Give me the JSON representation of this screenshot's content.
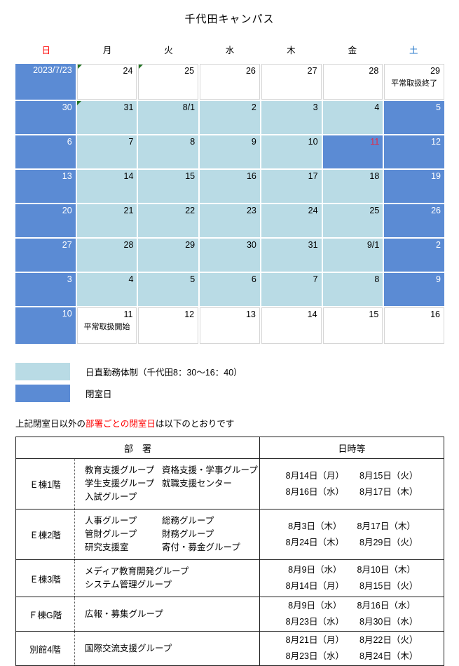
{
  "title": "千代田キャンパス",
  "weekdays": [
    {
      "label": "日",
      "color": "#ff0000"
    },
    {
      "label": "月",
      "color": "#000000"
    },
    {
      "label": "火",
      "color": "#000000"
    },
    {
      "label": "水",
      "color": "#000000"
    },
    {
      "label": "木",
      "color": "#000000"
    },
    {
      "label": "金",
      "color": "#000000"
    },
    {
      "label": "土",
      "color": "#1e73c8"
    }
  ],
  "calendar": {
    "rows": [
      [
        {
          "label": "2023/7/23",
          "type": "closed"
        },
        {
          "label": "24",
          "type": "open",
          "marker": true
        },
        {
          "label": "25",
          "type": "open",
          "marker": true
        },
        {
          "label": "26",
          "type": "open"
        },
        {
          "label": "27",
          "type": "open"
        },
        {
          "label": "28",
          "type": "open"
        },
        {
          "label": "29",
          "type": "open",
          "note": "平常取扱終了"
        }
      ],
      [
        {
          "label": "30",
          "type": "closed"
        },
        {
          "label": "31",
          "type": "duty",
          "marker": true
        },
        {
          "label": "8/1",
          "type": "duty"
        },
        {
          "label": "2",
          "type": "duty"
        },
        {
          "label": "3",
          "type": "duty"
        },
        {
          "label": "4",
          "type": "duty"
        },
        {
          "label": "5",
          "type": "closed"
        }
      ],
      [
        {
          "label": "6",
          "type": "closed"
        },
        {
          "label": "7",
          "type": "duty"
        },
        {
          "label": "8",
          "type": "duty"
        },
        {
          "label": "9",
          "type": "duty"
        },
        {
          "label": "10",
          "type": "duty"
        },
        {
          "label": "11",
          "type": "closed",
          "holiday": true
        },
        {
          "label": "12",
          "type": "closed"
        }
      ],
      [
        {
          "label": "13",
          "type": "closed"
        },
        {
          "label": "14",
          "type": "duty"
        },
        {
          "label": "15",
          "type": "duty"
        },
        {
          "label": "16",
          "type": "duty"
        },
        {
          "label": "17",
          "type": "duty"
        },
        {
          "label": "18",
          "type": "duty"
        },
        {
          "label": "19",
          "type": "closed"
        }
      ],
      [
        {
          "label": "20",
          "type": "closed"
        },
        {
          "label": "21",
          "type": "duty"
        },
        {
          "label": "22",
          "type": "duty"
        },
        {
          "label": "23",
          "type": "duty"
        },
        {
          "label": "24",
          "type": "duty"
        },
        {
          "label": "25",
          "type": "duty"
        },
        {
          "label": "26",
          "type": "closed"
        }
      ],
      [
        {
          "label": "27",
          "type": "closed"
        },
        {
          "label": "28",
          "type": "duty"
        },
        {
          "label": "29",
          "type": "duty"
        },
        {
          "label": "30",
          "type": "duty"
        },
        {
          "label": "31",
          "type": "duty"
        },
        {
          "label": "9/1",
          "type": "duty"
        },
        {
          "label": "2",
          "type": "closed"
        }
      ],
      [
        {
          "label": "3",
          "type": "closed"
        },
        {
          "label": "4",
          "type": "duty"
        },
        {
          "label": "5",
          "type": "duty"
        },
        {
          "label": "6",
          "type": "duty"
        },
        {
          "label": "7",
          "type": "duty"
        },
        {
          "label": "8",
          "type": "duty"
        },
        {
          "label": "9",
          "type": "closed"
        }
      ],
      [
        {
          "label": "10",
          "type": "closed"
        },
        {
          "label": "11",
          "type": "open",
          "note": "平常取扱開始"
        },
        {
          "label": "12",
          "type": "open"
        },
        {
          "label": "13",
          "type": "open"
        },
        {
          "label": "14",
          "type": "open"
        },
        {
          "label": "15",
          "type": "open"
        },
        {
          "label": "16",
          "type": "open"
        }
      ]
    ]
  },
  "legend": [
    {
      "swatch": "duty",
      "label": "日直勤務体制（千代田8：30～16：40）"
    },
    {
      "swatch": "closed",
      "label": "閉室日"
    }
  ],
  "note": {
    "pre": "上記閉室日以外の",
    "highlight": "部署ごとの閉室日",
    "post": "は以下のとおりです"
  },
  "table": {
    "headers": [
      "部　署",
      "日時等"
    ],
    "rows": [
      {
        "building": "Ｅ棟1階",
        "groups": [
          [
            "教育支援グループ",
            "資格支援・学事グループ"
          ],
          [
            "学生支援グループ",
            "就職支援センター"
          ],
          [
            "入試グループ"
          ]
        ],
        "dates": [
          [
            "8月14日（月）",
            "8月15日（火）"
          ],
          [
            "8月16日（水）",
            "8月17日（木）"
          ]
        ]
      },
      {
        "building": "Ｅ棟2階",
        "groups": [
          [
            "人事グループ",
            "総務グループ"
          ],
          [
            "管財グループ",
            "財務グループ"
          ],
          [
            "研究支援室",
            "寄付・募金グループ"
          ]
        ],
        "dates": [
          [
            "8月3日（木）",
            "8月17日（木）"
          ],
          [
            "8月24日（木）",
            "8月29日（火）"
          ]
        ]
      },
      {
        "building": "Ｅ棟3階",
        "groups": [
          [
            "メディア教育開発グループ"
          ],
          [
            "システム管理グループ"
          ]
        ],
        "dates": [
          [
            "8月9日（水）",
            "8月10日（木）"
          ],
          [
            "8月14日（月）",
            "8月15日（火）"
          ]
        ]
      },
      {
        "building": "Ｆ棟G階",
        "groups": [
          [
            "広報・募集グループ"
          ]
        ],
        "dates": [
          [
            "8月9日（水）",
            "8月16日（水）"
          ],
          [
            "8月23日（水）",
            "8月30日（水）"
          ]
        ]
      },
      {
        "building": "別館4階",
        "groups": [
          [
            "国際交流支援グループ"
          ]
        ],
        "dates": [
          [
            "8月21日（月）",
            "8月22日（火）"
          ],
          [
            "8月23日（水）",
            "8月24日（木）"
          ]
        ]
      }
    ]
  },
  "colors": {
    "closed_blue": "#5b8bd4",
    "duty_lightblue": "#b9dbe5",
    "holiday_red": "#e62846",
    "sunday_red": "#ff0000",
    "saturday_blue": "#1e73c8",
    "note_red": "#ff0000",
    "marker_green": "#217323"
  }
}
